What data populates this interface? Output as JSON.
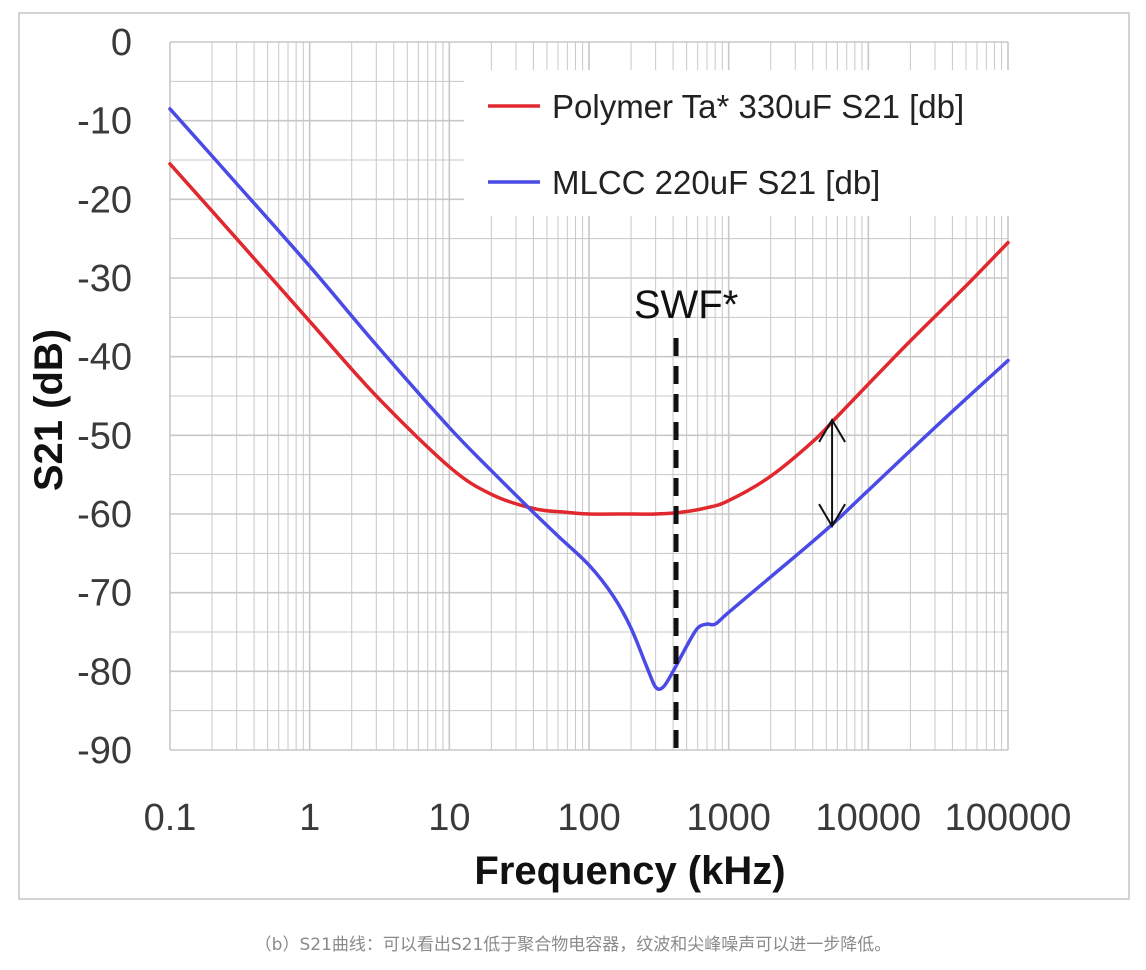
{
  "chart_data": {
    "type": "line",
    "title": "",
    "xlabel": "Frequency (kHz)",
    "ylabel": "S21 (dB)",
    "xscale": "log",
    "xlim": [
      0.1,
      100000
    ],
    "ylim": [
      -90,
      0
    ],
    "x_tick_labels": [
      "0.1",
      "1",
      "10",
      "100",
      "1000",
      "10000",
      "100000"
    ],
    "y_tick_labels": [
      "0",
      "-10",
      "-20",
      "-30",
      "-40",
      "-50",
      "-60",
      "-70",
      "-80",
      "-90"
    ],
    "grid": true,
    "legend_position": "top-right",
    "series": [
      {
        "name": "Polymer Ta* 330uF S21 [db]",
        "color": "#e0282e",
        "x": [
          0.1,
          0.3,
          1,
          3,
          10,
          20,
          40,
          70,
          100,
          200,
          300,
          450,
          700,
          1000,
          2000,
          4000,
          6000,
          10000,
          20000,
          50000,
          100000
        ],
        "y": [
          -15.5,
          -25,
          -35.5,
          -45,
          -54,
          -57.5,
          -59.3,
          -59.8,
          -60,
          -60,
          -60,
          -59.8,
          -59.2,
          -58.3,
          -55.2,
          -50.8,
          -47.6,
          -43.5,
          -38,
          -31,
          -25.5
        ]
      },
      {
        "name": "MLCC 220uF S21 [db]",
        "color": "#4a4ae6",
        "x": [
          0.1,
          0.3,
          1,
          3,
          10,
          20,
          40,
          60,
          100,
          150,
          200,
          260,
          300,
          340,
          400,
          500,
          600,
          700,
          800,
          1000,
          2000,
          5000,
          10000,
          30000,
          100000
        ],
        "y": [
          -8.5,
          -18,
          -28.5,
          -38.5,
          -49,
          -54.5,
          -59.8,
          -62.8,
          -66.5,
          -70.5,
          -74.5,
          -79.5,
          -82,
          -82,
          -80,
          -76.8,
          -74.5,
          -74,
          -74,
          -72.5,
          -68,
          -62,
          -57,
          -49,
          -40.5
        ]
      }
    ],
    "annotations": [
      {
        "text": "SWF*",
        "x": 420,
        "style": "dashed-vertical-line"
      },
      {
        "text": "",
        "x": 5500,
        "y_from": -47.8,
        "y_to": -61.8,
        "style": "double-arrow"
      }
    ]
  },
  "caption": "（b）S21曲线：可以看出S21低于聚合物电容器，纹波和尖峰噪声可以进一步降低。",
  "colors": {
    "grid": "#c8c8c8",
    "border": "#d4d4d4",
    "caption": "#8a8a8a"
  }
}
